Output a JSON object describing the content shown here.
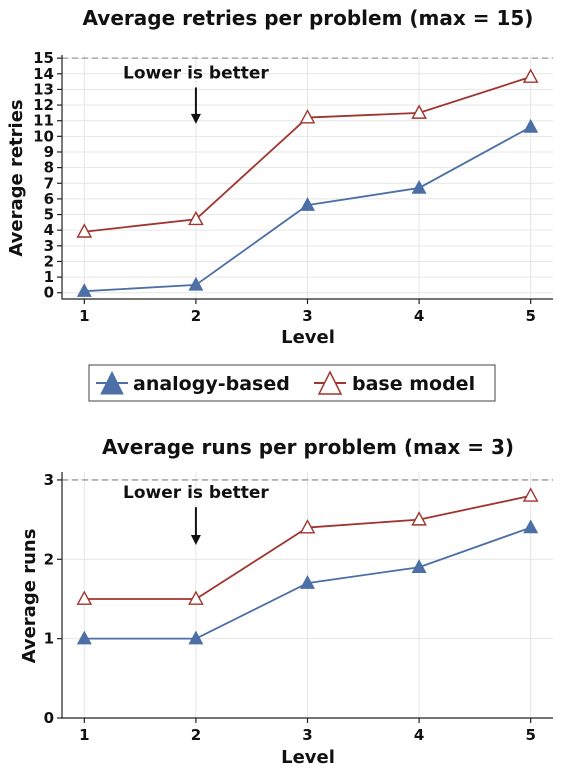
{
  "chart_data": [
    {
      "type": "line",
      "title": "Average retries per problem (max = 15)",
      "xlabel": "Level",
      "ylabel": "Average retries",
      "x": [
        1,
        2,
        3,
        4,
        5
      ],
      "ylim": [
        -0.4,
        15.2
      ],
      "yticks": [
        0,
        1,
        2,
        3,
        4,
        5,
        6,
        7,
        8,
        9,
        10,
        11,
        12,
        13,
        14,
        15
      ],
      "max_line": 15,
      "grid": true,
      "annotation": {
        "text": "Lower is better",
        "x": 2,
        "y_text": 13.7,
        "y_arrow": 10.8
      },
      "series": [
        {
          "name": "analogy-based",
          "values": [
            0.1,
            0.5,
            5.6,
            6.7,
            10.6
          ],
          "color": "#4c6fa5",
          "marker": "triangle-filled"
        },
        {
          "name": "base model",
          "values": [
            3.9,
            4.7,
            11.2,
            11.5,
            13.8
          ],
          "color": "#a0342e",
          "marker": "triangle-open"
        }
      ]
    },
    {
      "type": "line",
      "title": "Average runs per problem (max = 3)",
      "xlabel": "Level",
      "ylabel": "Average runs",
      "x": [
        1,
        2,
        3,
        4,
        5
      ],
      "ylim": [
        0,
        3.1
      ],
      "yticks": [
        0,
        1,
        2,
        3
      ],
      "max_line": 3,
      "grid": true,
      "annotation": {
        "text": "Lower is better",
        "x": 2,
        "y_text": 2.77,
        "y_arrow": 2.18
      },
      "series": [
        {
          "name": "analogy-based",
          "values": [
            1.0,
            1.0,
            1.7,
            1.9,
            2.4
          ],
          "color": "#4c6fa5",
          "marker": "triangle-filled"
        },
        {
          "name": "base model",
          "values": [
            1.5,
            1.5,
            2.4,
            2.5,
            2.8
          ],
          "color": "#a0342e",
          "marker": "triangle-open"
        }
      ]
    }
  ],
  "legend": {
    "placement": "between-charts",
    "items": [
      {
        "label": "analogy-based",
        "color": "#4c6fa5",
        "marker": "triangle-filled"
      },
      {
        "label": "base model",
        "color": "#a0342e",
        "marker": "triangle-open"
      }
    ]
  }
}
